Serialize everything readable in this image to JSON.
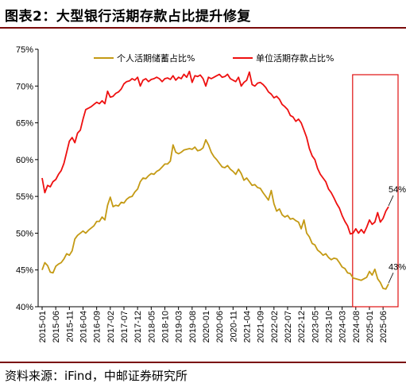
{
  "header": {
    "title": "图表2：大型银行活期存款占比提升修复"
  },
  "footer": {
    "source": "资料来源：iFind，中邮证券研究所"
  },
  "colors": {
    "series_personal": "#c49a14",
    "series_corporate": "#ee1010",
    "highlight_box": "#e01010",
    "rule": "#7a0a0a"
  },
  "chart_data": {
    "type": "line",
    "title": "",
    "xlabel": "",
    "ylabel": "",
    "ylim": [
      40,
      75
    ],
    "yticks": [
      "40%",
      "45%",
      "50%",
      "55%",
      "60%",
      "65%",
      "70%",
      "75%"
    ],
    "xtick_labels": [
      "2015-01",
      "2015-06",
      "2015-11",
      "2016-04",
      "2016-09",
      "2017-02",
      "2017-07",
      "2017-12",
      "2018-05",
      "2018-10",
      "2019-03",
      "2019-08",
      "2020-01",
      "2020-06",
      "2020-11",
      "2021-04",
      "2021-09",
      "2022-02",
      "2022-07",
      "2022-12",
      "2023-05",
      "2023-10",
      "2024-03",
      "2024-08",
      "2025-01",
      "2025-06"
    ],
    "legend_position": "top",
    "grid": false,
    "highlight": {
      "from": "2024-08",
      "to": "2025-08"
    },
    "series": [
      {
        "name": "个人活期储蓄占比%",
        "key": "personal",
        "end_label": "43%",
        "points": [
          [
            "2015-01",
            45.0
          ],
          [
            "2015-02",
            46.0
          ],
          [
            "2015-03",
            45.6
          ],
          [
            "2015-04",
            44.7
          ],
          [
            "2015-05",
            44.6
          ],
          [
            "2015-06",
            45.5
          ],
          [
            "2015-07",
            45.8
          ],
          [
            "2015-08",
            46.0
          ],
          [
            "2015-09",
            46.5
          ],
          [
            "2015-10",
            47.2
          ],
          [
            "2015-11",
            47.0
          ],
          [
            "2015-12",
            47.6
          ],
          [
            "2016-01",
            49.2
          ],
          [
            "2016-02",
            49.7
          ],
          [
            "2016-03",
            50.0
          ],
          [
            "2016-04",
            50.3
          ],
          [
            "2016-05",
            50.0
          ],
          [
            "2016-06",
            50.4
          ],
          [
            "2016-07",
            50.7
          ],
          [
            "2016-08",
            51.0
          ],
          [
            "2016-09",
            51.6
          ],
          [
            "2016-10",
            51.6
          ],
          [
            "2016-11",
            52.2
          ],
          [
            "2016-12",
            51.8
          ],
          [
            "2017-01",
            53.8
          ],
          [
            "2017-02",
            54.9
          ],
          [
            "2017-03",
            53.6
          ],
          [
            "2017-04",
            53.8
          ],
          [
            "2017-05",
            53.7
          ],
          [
            "2017-06",
            54.2
          ],
          [
            "2017-07",
            54.1
          ],
          [
            "2017-08",
            54.6
          ],
          [
            "2017-09",
            54.9
          ],
          [
            "2017-10",
            55.0
          ],
          [
            "2017-11",
            55.6
          ],
          [
            "2017-12",
            56.0
          ],
          [
            "2018-01",
            57.0
          ],
          [
            "2018-02",
            57.5
          ],
          [
            "2018-03",
            57.4
          ],
          [
            "2018-04",
            57.8
          ],
          [
            "2018-05",
            58.1
          ],
          [
            "2018-06",
            58.0
          ],
          [
            "2018-07",
            58.4
          ],
          [
            "2018-08",
            58.6
          ],
          [
            "2018-09",
            59.0
          ],
          [
            "2018-10",
            59.4
          ],
          [
            "2018-11",
            59.4
          ],
          [
            "2018-12",
            59.8
          ],
          [
            "2019-01",
            62.0
          ],
          [
            "2019-02",
            61.0
          ],
          [
            "2019-03",
            60.8
          ],
          [
            "2019-04",
            61.0
          ],
          [
            "2019-05",
            61.3
          ],
          [
            "2019-06",
            61.4
          ],
          [
            "2019-07",
            61.5
          ],
          [
            "2019-08",
            61.4
          ],
          [
            "2019-09",
            61.7
          ],
          [
            "2019-10",
            61.2
          ],
          [
            "2019-11",
            61.3
          ],
          [
            "2019-12",
            61.6
          ],
          [
            "2020-01",
            62.7
          ],
          [
            "2020-02",
            62.0
          ],
          [
            "2020-03",
            61.0
          ],
          [
            "2020-04",
            60.4
          ],
          [
            "2020-05",
            60.0
          ],
          [
            "2020-06",
            59.5
          ],
          [
            "2020-07",
            59.0
          ],
          [
            "2020-08",
            58.9
          ],
          [
            "2020-09",
            59.2
          ],
          [
            "2020-10",
            58.7
          ],
          [
            "2020-11",
            58.4
          ],
          [
            "2020-12",
            58.0
          ],
          [
            "2021-01",
            58.7
          ],
          [
            "2021-02",
            58.1
          ],
          [
            "2021-03",
            57.2
          ],
          [
            "2021-04",
            57.5
          ],
          [
            "2021-05",
            57.0
          ],
          [
            "2021-06",
            56.5
          ],
          [
            "2021-07",
            56.6
          ],
          [
            "2021-08",
            56.2
          ],
          [
            "2021-09",
            56.1
          ],
          [
            "2021-10",
            55.5
          ],
          [
            "2021-11",
            55.0
          ],
          [
            "2021-12",
            54.5
          ],
          [
            "2022-01",
            55.8
          ],
          [
            "2022-02",
            54.0
          ],
          [
            "2022-03",
            53.0
          ],
          [
            "2022-04",
            53.3
          ],
          [
            "2022-05",
            52.5
          ],
          [
            "2022-06",
            52.2
          ],
          [
            "2022-07",
            52.4
          ],
          [
            "2022-08",
            51.9
          ],
          [
            "2022-09",
            52.0
          ],
          [
            "2022-10",
            51.7
          ],
          [
            "2022-11",
            51.5
          ],
          [
            "2022-12",
            50.6
          ],
          [
            "2023-01",
            51.8
          ],
          [
            "2023-02",
            50.0
          ],
          [
            "2023-03",
            49.5
          ],
          [
            "2023-04",
            48.6
          ],
          [
            "2023-05",
            48.4
          ],
          [
            "2023-06",
            47.7
          ],
          [
            "2023-07",
            47.4
          ],
          [
            "2023-08",
            47.0
          ],
          [
            "2023-09",
            47.2
          ],
          [
            "2023-10",
            46.7
          ],
          [
            "2023-11",
            46.4
          ],
          [
            "2023-12",
            46.6
          ],
          [
            "2024-01",
            46.5
          ],
          [
            "2024-02",
            46.0
          ],
          [
            "2024-03",
            45.4
          ],
          [
            "2024-04",
            45.2
          ],
          [
            "2024-05",
            44.6
          ],
          [
            "2024-06",
            44.5
          ],
          [
            "2024-07",
            43.9
          ],
          [
            "2024-08",
            43.8
          ],
          [
            "2024-09",
            43.7
          ],
          [
            "2024-10",
            43.6
          ],
          [
            "2024-11",
            43.8
          ],
          [
            "2024-12",
            44.0
          ],
          [
            "2025-01",
            44.8
          ],
          [
            "2025-02",
            44.3
          ],
          [
            "2025-03",
            45.1
          ],
          [
            "2025-04",
            43.8
          ],
          [
            "2025-05",
            43.3
          ],
          [
            "2025-06",
            42.5
          ],
          [
            "2025-07",
            42.4
          ],
          [
            "2025-08",
            43.1
          ]
        ]
      },
      {
        "name": "单位活期存款占比%",
        "key": "corporate",
        "end_label": "54%",
        "points": [
          [
            "2015-01",
            57.5
          ],
          [
            "2015-02",
            55.5
          ],
          [
            "2015-03",
            56.5
          ],
          [
            "2015-04",
            56.3
          ],
          [
            "2015-05",
            57.0
          ],
          [
            "2015-06",
            57.3
          ],
          [
            "2015-07",
            58.0
          ],
          [
            "2015-08",
            58.5
          ],
          [
            "2015-09",
            59.5
          ],
          [
            "2015-10",
            61.0
          ],
          [
            "2015-11",
            62.5
          ],
          [
            "2015-12",
            63.0
          ],
          [
            "2016-01",
            62.3
          ],
          [
            "2016-02",
            63.6
          ],
          [
            "2016-03",
            64.0
          ],
          [
            "2016-04",
            65.5
          ],
          [
            "2016-05",
            66.8
          ],
          [
            "2016-06",
            67.0
          ],
          [
            "2016-07",
            67.2
          ],
          [
            "2016-08",
            67.5
          ],
          [
            "2016-09",
            67.8
          ],
          [
            "2016-10",
            67.6
          ],
          [
            "2016-11",
            68.0
          ],
          [
            "2016-12",
            67.6
          ],
          [
            "2017-01",
            69.3
          ],
          [
            "2017-02",
            68.5
          ],
          [
            "2017-03",
            68.6
          ],
          [
            "2017-04",
            69.0
          ],
          [
            "2017-05",
            69.2
          ],
          [
            "2017-06",
            69.6
          ],
          [
            "2017-07",
            70.3
          ],
          [
            "2017-08",
            70.6
          ],
          [
            "2017-09",
            70.7
          ],
          [
            "2017-10",
            71.0
          ],
          [
            "2017-11",
            70.8
          ],
          [
            "2017-12",
            71.2
          ],
          [
            "2018-01",
            70.0
          ],
          [
            "2018-02",
            70.8
          ],
          [
            "2018-03",
            71.0
          ],
          [
            "2018-04",
            70.6
          ],
          [
            "2018-05",
            70.9
          ],
          [
            "2018-06",
            71.0
          ],
          [
            "2018-07",
            71.2
          ],
          [
            "2018-08",
            71.0
          ],
          [
            "2018-09",
            70.6
          ],
          [
            "2018-10",
            71.0
          ],
          [
            "2018-11",
            71.1
          ],
          [
            "2018-12",
            70.9
          ],
          [
            "2019-01",
            71.4
          ],
          [
            "2019-02",
            70.8
          ],
          [
            "2019-03",
            71.2
          ],
          [
            "2019-04",
            71.0
          ],
          [
            "2019-05",
            71.6
          ],
          [
            "2019-06",
            71.2
          ],
          [
            "2019-07",
            72.0
          ],
          [
            "2019-08",
            70.5
          ],
          [
            "2019-09",
            71.4
          ],
          [
            "2019-10",
            71.3
          ],
          [
            "2019-11",
            71.5
          ],
          [
            "2019-12",
            71.0
          ],
          [
            "2020-01",
            70.0
          ],
          [
            "2020-02",
            71.2
          ],
          [
            "2020-03",
            71.0
          ],
          [
            "2020-04",
            71.2
          ],
          [
            "2020-05",
            71.4
          ],
          [
            "2020-06",
            71.6
          ],
          [
            "2020-07",
            71.2
          ],
          [
            "2020-08",
            71.3
          ],
          [
            "2020-09",
            71.6
          ],
          [
            "2020-10",
            71.0
          ],
          [
            "2020-11",
            70.8
          ],
          [
            "2020-12",
            70.6
          ],
          [
            "2021-01",
            71.2
          ],
          [
            "2021-02",
            70.0
          ],
          [
            "2021-03",
            70.5
          ],
          [
            "2021-04",
            70.8
          ],
          [
            "2021-05",
            71.9
          ],
          [
            "2021-06",
            70.2
          ],
          [
            "2021-07",
            70.0
          ],
          [
            "2021-08",
            70.4
          ],
          [
            "2021-09",
            70.5
          ],
          [
            "2021-10",
            70.2
          ],
          [
            "2021-11",
            69.8
          ],
          [
            "2021-12",
            69.2
          ],
          [
            "2022-01",
            68.9
          ],
          [
            "2022-02",
            68.4
          ],
          [
            "2022-03",
            68.6
          ],
          [
            "2022-04",
            68.2
          ],
          [
            "2022-05",
            67.5
          ],
          [
            "2022-06",
            67.2
          ],
          [
            "2022-07",
            66.8
          ],
          [
            "2022-08",
            66.0
          ],
          [
            "2022-09",
            65.8
          ],
          [
            "2022-10",
            65.2
          ],
          [
            "2022-11",
            65.5
          ],
          [
            "2022-12",
            65.0
          ],
          [
            "2023-01",
            64.0
          ],
          [
            "2023-02",
            63.0
          ],
          [
            "2023-03",
            61.5
          ],
          [
            "2023-04",
            60.5
          ],
          [
            "2023-05",
            60.0
          ],
          [
            "2023-06",
            58.8
          ],
          [
            "2023-07",
            58.0
          ],
          [
            "2023-08",
            57.5
          ],
          [
            "2023-09",
            57.0
          ],
          [
            "2023-10",
            56.0
          ],
          [
            "2023-11",
            55.5
          ],
          [
            "2023-12",
            54.8
          ],
          [
            "2024-01",
            54.0
          ],
          [
            "2024-02",
            53.4
          ],
          [
            "2024-03",
            52.4
          ],
          [
            "2024-04",
            51.6
          ],
          [
            "2024-05",
            51.0
          ],
          [
            "2024-06",
            49.9
          ],
          [
            "2024-07",
            50.0
          ],
          [
            "2024-08",
            50.6
          ],
          [
            "2024-09",
            50.0
          ],
          [
            "2024-10",
            50.5
          ],
          [
            "2024-11",
            50.0
          ],
          [
            "2024-12",
            50.8
          ],
          [
            "2025-01",
            51.8
          ],
          [
            "2025-02",
            51.2
          ],
          [
            "2025-03",
            51.5
          ],
          [
            "2025-04",
            52.8
          ],
          [
            "2025-05",
            51.5
          ],
          [
            "2025-06",
            52.0
          ],
          [
            "2025-07",
            53.0
          ],
          [
            "2025-08",
            53.6
          ]
        ]
      }
    ]
  }
}
